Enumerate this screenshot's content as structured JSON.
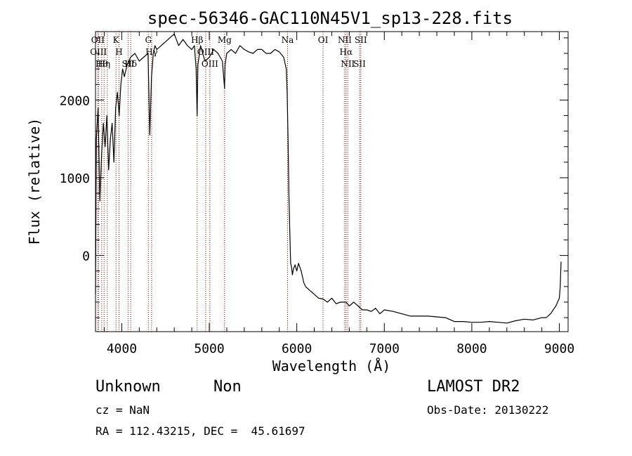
{
  "chart_data": {
    "type": "line",
    "title": "spec-56346-GAC110N45V1_sp13-228.fits",
    "xlabel": "Wavelength (Å)",
    "ylabel": "Flux (relative)",
    "xlim": [
      3700,
      9100
    ],
    "ylim": [
      -980,
      2880
    ],
    "xticks": [
      4000,
      5000,
      6000,
      7000,
      8000,
      9000
    ],
    "yticks": [
      0,
      1000,
      2000
    ],
    "grid": false,
    "line_color": "#000000",
    "marker_color": "#8b0000",
    "series": [
      {
        "x": [
          3700,
          3710,
          3730,
          3750,
          3770,
          3790,
          3810,
          3830,
          3850,
          3870,
          3890,
          3910,
          3930,
          3950,
          3970,
          3990,
          4010,
          4030,
          4060,
          4100,
          4150,
          4200,
          4250,
          4300,
          4320,
          4340,
          4360,
          4380,
          4400,
          4450,
          4500,
          4550,
          4600,
          4650,
          4700,
          4750,
          4800,
          4830,
          4850,
          4861,
          4870,
          4900,
          4950,
          5000,
          5050,
          5100,
          5150,
          5175,
          5180,
          5200,
          5250,
          5300,
          5350,
          5400,
          5450,
          5500,
          5550,
          5600,
          5650,
          5700,
          5750,
          5800,
          5850,
          5880,
          5890,
          5900,
          5910,
          5920,
          5930,
          5940,
          5950,
          5960,
          5980,
          6000,
          6020,
          6050,
          6080,
          6100,
          6150,
          6200,
          6250,
          6300,
          6350,
          6400,
          6450,
          6500,
          6563,
          6600,
          6650,
          6700,
          6750,
          6800,
          6850,
          6900,
          6950,
          7000,
          7100,
          7200,
          7300,
          7400,
          7500,
          7600,
          7700,
          7800,
          7900,
          8000,
          8100,
          8200,
          8300,
          8400,
          8500,
          8600,
          8700,
          8800,
          8850,
          8900,
          8930,
          8960,
          8980,
          9000,
          9010,
          9020
        ],
        "y": [
          -500,
          1500,
          1900,
          700,
          1300,
          1700,
          1400,
          1800,
          1100,
          1500,
          1700,
          1200,
          1900,
          2100,
          1800,
          2200,
          2400,
          2300,
          2450,
          2550,
          2600,
          2500,
          2550,
          2600,
          1550,
          2300,
          2600,
          2700,
          2650,
          2700,
          2750,
          2800,
          2850,
          2700,
          2780,
          2700,
          2650,
          2700,
          2400,
          1800,
          2450,
          2700,
          2500,
          2550,
          2650,
          2600,
          2500,
          2150,
          2450,
          2600,
          2650,
          2600,
          2700,
          2650,
          2620,
          2600,
          2650,
          2650,
          2600,
          2600,
          2650,
          2620,
          2550,
          2400,
          2100,
          1500,
          800,
          300,
          -100,
          -150,
          -250,
          -180,
          -120,
          -200,
          -100,
          -200,
          -350,
          -400,
          -450,
          -500,
          -550,
          -560,
          -600,
          -550,
          -620,
          -600,
          -600,
          -650,
          -600,
          -650,
          -700,
          -700,
          -720,
          -680,
          -750,
          -700,
          -720,
          -750,
          -780,
          -780,
          -780,
          -790,
          -800,
          -850,
          -850,
          -860,
          -860,
          -850,
          -860,
          -870,
          -840,
          -820,
          -830,
          -800,
          -800,
          -750,
          -700,
          -650,
          -600,
          -550,
          -400,
          -80
        ]
      }
    ],
    "lines": [
      {
        "wavelength": 3727,
        "label": "OII"
      },
      {
        "wavelength": 3734,
        "label": "OIII"
      },
      {
        "wavelength": 3771,
        "label": "Hθ"
      },
      {
        "wavelength": 3798,
        "label": "Hη"
      },
      {
        "wavelength": 3835,
        "label": ""
      },
      {
        "wavelength": 3934,
        "label": "K"
      },
      {
        "wavelength": 3969,
        "label": "H"
      },
      {
        "wavelength": 4072,
        "label": "SII"
      },
      {
        "wavelength": 4102,
        "label": "Hδ"
      },
      {
        "wavelength": 4304,
        "label": "G"
      },
      {
        "wavelength": 4341,
        "label": "Hγ"
      },
      {
        "wavelength": 4861,
        "label": "Hβ"
      },
      {
        "wavelength": 4959,
        "label": "OIII"
      },
      {
        "wavelength": 5007,
        "label": "OIII"
      },
      {
        "wavelength": 5175,
        "label": "Mg"
      },
      {
        "wavelength": 5894,
        "label": "Na"
      },
      {
        "wavelength": 6300,
        "label": "OI"
      },
      {
        "wavelength": 6548,
        "label": "NII"
      },
      {
        "wavelength": 6563,
        "label": "Hα"
      },
      {
        "wavelength": 6583,
        "label": "NII"
      },
      {
        "wavelength": 6717,
        "label": "SII"
      },
      {
        "wavelength": 6731,
        "label": "SII"
      }
    ]
  },
  "info": {
    "class": "Unknown",
    "subclass": "Non",
    "survey": "LAMOST DR2",
    "cz": "cz = NaN",
    "obs_date": "Obs-Date: 20130222",
    "radec": "RA = 112.43215, DEC =  45.61697"
  }
}
